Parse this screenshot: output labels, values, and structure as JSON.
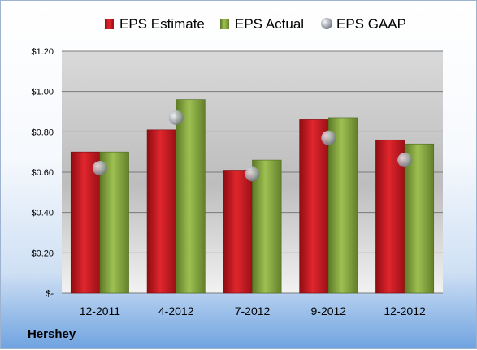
{
  "company": "Hershey",
  "chart_data": {
    "type": "bar",
    "categories": [
      "12-2011",
      "4-2012",
      "7-2012",
      "9-2012",
      "12-2012"
    ],
    "series": [
      {
        "name": "EPS Estimate",
        "type": "bar",
        "color": "#c8141c",
        "values": [
          0.7,
          0.81,
          0.61,
          0.86,
          0.76
        ]
      },
      {
        "name": "EPS Actual",
        "type": "bar",
        "color": "#7f9f3a",
        "values": [
          0.7,
          0.96,
          0.66,
          0.87,
          0.74
        ]
      },
      {
        "name": "EPS GAAP",
        "type": "marker",
        "color": "#a8acb4",
        "values": [
          0.62,
          0.87,
          0.59,
          0.77,
          0.66
        ]
      }
    ],
    "ylim": [
      0,
      1.2
    ],
    "yticks": [
      0,
      0.2,
      0.4,
      0.6,
      0.8,
      1.0,
      1.2
    ],
    "ytick_labels": [
      "$-",
      "$0.20",
      "$0.40",
      "$0.60",
      "$0.80",
      "$1.00",
      "$1.20"
    ],
    "legend_position": "top",
    "grid": true
  }
}
